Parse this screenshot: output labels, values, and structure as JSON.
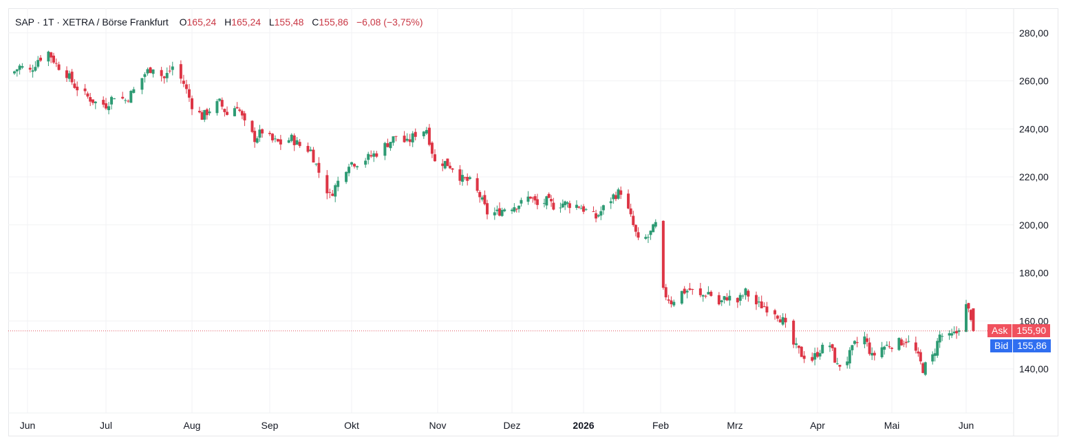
{
  "legend": {
    "symbol": "SAP",
    "interval": "1T",
    "exchange": "XETRA / Börse Frankfurt",
    "open_label": "O",
    "open": "165,24",
    "high_label": "H",
    "high": "165,24",
    "low_label": "L",
    "low": "155,48",
    "close_label": "C",
    "close": "155,86",
    "change": "−6,08 (−3,75%)"
  },
  "quotes": {
    "ask_label": "Ask",
    "ask": "155,90",
    "bid_label": "Bid",
    "bid": "155,86"
  },
  "colors": {
    "up": "#2e9b74",
    "down": "#dd3545",
    "ask_bg": "#f0515e",
    "bid_bg": "#2f6ef0",
    "grid": "#f1f2f4",
    "axis_text": "#131722"
  },
  "chart_data": {
    "type": "candlestick",
    "y_axis": {
      "ticks": [
        "280,00",
        "260,00",
        "240,00",
        "220,00",
        "200,00",
        "180,00",
        "160,00",
        "140,00"
      ],
      "tick_values": [
        280,
        260,
        240,
        220,
        200,
        180,
        160,
        140
      ],
      "range": [
        126,
        289
      ],
      "position": "right"
    },
    "x_axis": {
      "labels": [
        "Jun",
        "Jul",
        "Aug",
        "Sep",
        "Okt",
        "Nov",
        "Dez",
        "2026",
        "Feb",
        "Mrz",
        "Apr",
        "Mai",
        "Jun"
      ],
      "bold": [
        "2026"
      ],
      "dates": [
        "2025-06-01",
        "2025-07-01",
        "2025-08-01",
        "2025-09-01",
        "2025-10-01",
        "2025-11-01",
        "2025-12-01",
        "2026-01-01",
        "2026-02-01",
        "2026-03-01",
        "2026-04-01",
        "2026-05-01",
        "2026-06-01"
      ]
    },
    "grid": true,
    "last_price_line": 155.86,
    "closes": [
      {
        "d": "2025-05-27",
        "c": 264
      },
      {
        "d": "2025-05-29",
        "c": 266
      },
      {
        "d": "2025-06-02",
        "c": 264
      },
      {
        "d": "2025-06-05",
        "c": 269
      },
      {
        "d": "2025-06-09",
        "c": 272
      },
      {
        "d": "2025-06-12",
        "c": 267
      },
      {
        "d": "2025-06-16",
        "c": 263
      },
      {
        "d": "2025-06-19",
        "c": 258
      },
      {
        "d": "2025-06-23",
        "c": 254
      },
      {
        "d": "2025-06-27",
        "c": 251
      },
      {
        "d": "2025-07-01",
        "c": 250
      },
      {
        "d": "2025-07-04",
        "c": 254
      },
      {
        "d": "2025-07-08",
        "c": 252
      },
      {
        "d": "2025-07-11",
        "c": 256
      },
      {
        "d": "2025-07-15",
        "c": 263
      },
      {
        "d": "2025-07-18",
        "c": 266
      },
      {
        "d": "2025-07-22",
        "c": 261
      },
      {
        "d": "2025-07-25",
        "c": 266
      },
      {
        "d": "2025-07-29",
        "c": 259
      },
      {
        "d": "2025-08-01",
        "c": 250
      },
      {
        "d": "2025-08-05",
        "c": 245
      },
      {
        "d": "2025-08-08",
        "c": 248
      },
      {
        "d": "2025-08-12",
        "c": 251
      },
      {
        "d": "2025-08-15",
        "c": 246
      },
      {
        "d": "2025-08-19",
        "c": 250
      },
      {
        "d": "2025-08-22",
        "c": 242
      },
      {
        "d": "2025-08-26",
        "c": 236
      },
      {
        "d": "2025-08-29",
        "c": 239
      },
      {
        "d": "2025-09-02",
        "c": 235
      },
      {
        "d": "2025-09-05",
        "c": 234
      },
      {
        "d": "2025-09-09",
        "c": 236
      },
      {
        "d": "2025-09-12",
        "c": 233
      },
      {
        "d": "2025-09-16",
        "c": 231
      },
      {
        "d": "2025-09-19",
        "c": 222
      },
      {
        "d": "2025-09-23",
        "c": 212
      },
      {
        "d": "2025-09-26",
        "c": 218
      },
      {
        "d": "2025-09-30",
        "c": 226
      },
      {
        "d": "2025-10-03",
        "c": 226
      },
      {
        "d": "2025-10-07",
        "c": 228
      },
      {
        "d": "2025-10-10",
        "c": 230
      },
      {
        "d": "2025-10-14",
        "c": 234
      },
      {
        "d": "2025-10-17",
        "c": 237
      },
      {
        "d": "2025-10-21",
        "c": 234
      },
      {
        "d": "2025-10-24",
        "c": 238
      },
      {
        "d": "2025-10-28",
        "c": 240
      },
      {
        "d": "2025-10-31",
        "c": 226
      },
      {
        "d": "2025-11-04",
        "c": 226
      },
      {
        "d": "2025-11-07",
        "c": 224
      },
      {
        "d": "2025-11-11",
        "c": 219
      },
      {
        "d": "2025-11-14",
        "c": 218
      },
      {
        "d": "2025-11-18",
        "c": 212
      },
      {
        "d": "2025-11-21",
        "c": 205
      },
      {
        "d": "2025-11-25",
        "c": 205
      },
      {
        "d": "2025-11-28",
        "c": 207
      },
      {
        "d": "2025-12-02",
        "c": 208
      },
      {
        "d": "2025-12-05",
        "c": 209
      },
      {
        "d": "2025-12-09",
        "c": 212
      },
      {
        "d": "2025-12-12",
        "c": 208
      },
      {
        "d": "2025-12-16",
        "c": 210
      },
      {
        "d": "2025-12-19",
        "c": 208
      },
      {
        "d": "2025-12-23",
        "c": 209
      },
      {
        "d": "2025-12-30",
        "c": 208
      },
      {
        "d": "2026-01-06",
        "c": 203
      },
      {
        "d": "2026-01-09",
        "c": 207
      },
      {
        "d": "2026-01-13",
        "c": 212
      },
      {
        "d": "2026-01-16",
        "c": 214
      },
      {
        "d": "2026-01-20",
        "c": 203
      },
      {
        "d": "2026-01-23",
        "c": 193
      },
      {
        "d": "2026-01-27",
        "c": 195
      },
      {
        "d": "2026-01-30",
        "c": 200
      },
      {
        "d": "2026-02-02",
        "c": 172
      },
      {
        "d": "2026-02-05",
        "c": 168
      },
      {
        "d": "2026-02-09",
        "c": 172
      },
      {
        "d": "2026-02-12",
        "c": 173
      },
      {
        "d": "2026-02-16",
        "c": 170
      },
      {
        "d": "2026-02-19",
        "c": 172
      },
      {
        "d": "2026-02-23",
        "c": 167
      },
      {
        "d": "2026-02-26",
        "c": 170
      },
      {
        "d": "2026-03-02",
        "c": 168
      },
      {
        "d": "2026-03-05",
        "c": 172
      },
      {
        "d": "2026-03-09",
        "c": 167
      },
      {
        "d": "2026-03-12",
        "c": 166
      },
      {
        "d": "2026-03-16",
        "c": 164
      },
      {
        "d": "2026-03-19",
        "c": 160
      },
      {
        "d": "2026-03-23",
        "c": 150
      },
      {
        "d": "2026-03-26",
        "c": 146
      },
      {
        "d": "2026-03-30",
        "c": 144
      },
      {
        "d": "2026-04-02",
        "c": 148
      },
      {
        "d": "2026-04-06",
        "c": 150
      },
      {
        "d": "2026-04-09",
        "c": 141
      },
      {
        "d": "2026-04-13",
        "c": 144
      },
      {
        "d": "2026-04-16",
        "c": 150
      },
      {
        "d": "2026-04-20",
        "c": 153
      },
      {
        "d": "2026-04-23",
        "c": 145
      },
      {
        "d": "2026-04-27",
        "c": 149
      },
      {
        "d": "2026-04-30",
        "c": 150
      },
      {
        "d": "2026-05-04",
        "c": 151
      },
      {
        "d": "2026-05-07",
        "c": 152
      },
      {
        "d": "2026-05-11",
        "c": 147
      },
      {
        "d": "2026-05-14",
        "c": 140
      },
      {
        "d": "2026-05-18",
        "c": 145
      },
      {
        "d": "2026-05-21",
        "c": 154
      },
      {
        "d": "2026-05-25",
        "c": 153
      },
      {
        "d": "2026-05-28",
        "c": 155
      },
      {
        "d": "2026-06-01",
        "c": 166
      },
      {
        "d": "2026-06-03",
        "c": 161.94
      },
      {
        "d": "2026-06-04",
        "c": 155.86
      }
    ]
  }
}
